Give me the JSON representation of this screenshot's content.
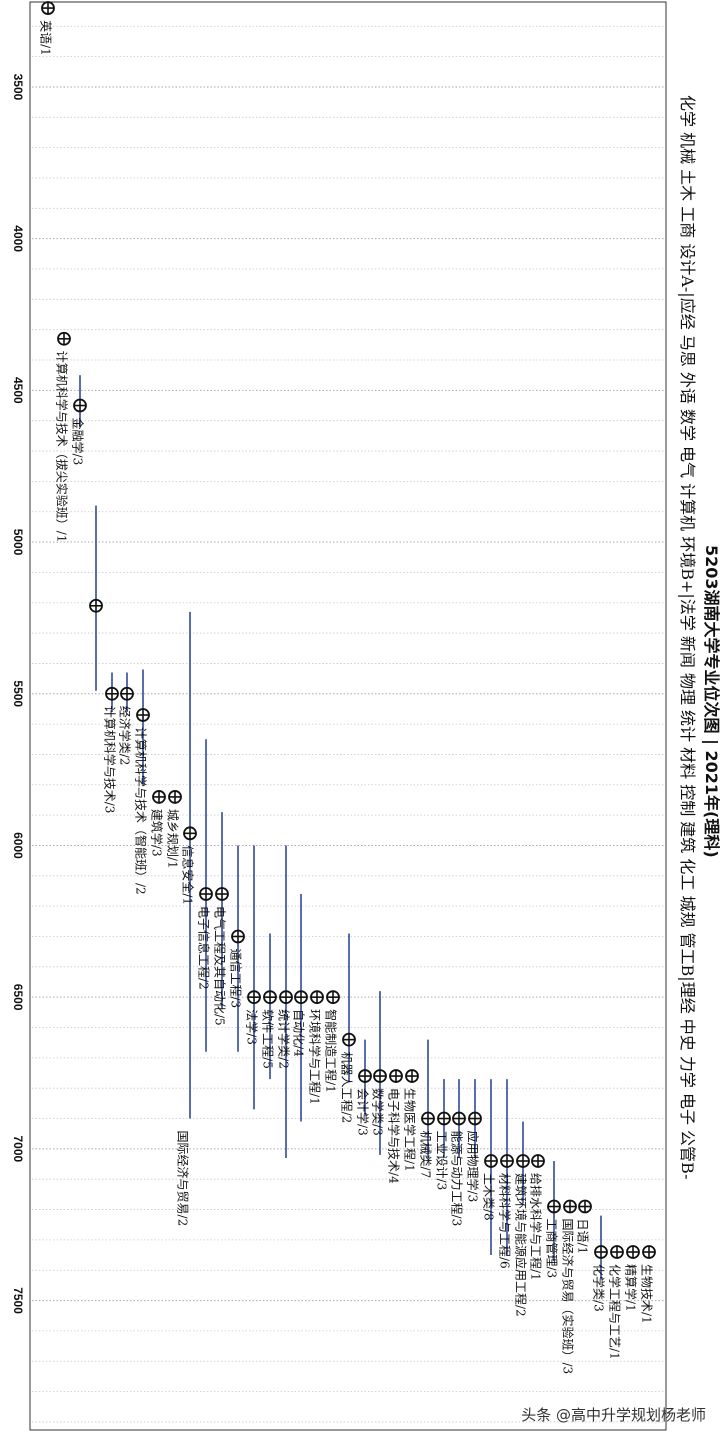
{
  "chart_data": {
    "type": "scatter",
    "orientation": "rotated-90",
    "title": "5203湖南大学专业位次图 | 2021年(理科)",
    "subtitle": "化学 机械 土木 工商 设计A-|应经 马思 外语 数学 电气 计算机 环境B+|法学 新闻 物理 统计 材料 控制 建筑 化工 城规 管工B|理经 中史 力学 电子 公管B-",
    "axis": {
      "label": "",
      "range": [
        3220,
        7920
      ],
      "ticks": [
        3500,
        4000,
        4500,
        5000,
        5500,
        6000,
        6500,
        7000,
        7500
      ]
    },
    "grid": true,
    "points": [
      {
        "label": "英语/1",
        "rank": 3240,
        "lo": null,
        "hi": null
      },
      {
        "label": "计算机科学与技术（拔尖实验班）/1",
        "rank": 4330,
        "lo": null,
        "hi": null
      },
      {
        "label": "金融学/3",
        "rank": 4550,
        "lo": 4450,
        "hi": 4620
      },
      {
        "label": "",
        "rank": 5210,
        "lo": 4880,
        "hi": 5490
      },
      {
        "label": "计算机科学与技术/3",
        "rank": 5500,
        "lo": 5430,
        "hi": 5560
      },
      {
        "label": "经济学类/2",
        "rank": 5500,
        "lo": 5430,
        "hi": 5560
      },
      {
        "label": "计算机科学与技术（智能班）/2",
        "rank": 5570,
        "lo": 5420,
        "hi": 5800
      },
      {
        "label": "建筑学/3",
        "rank": 5840,
        "lo": null,
        "hi": null
      },
      {
        "label": "城乡规划/1",
        "rank": 5840,
        "lo": null,
        "hi": null
      },
      {
        "label": "信息安全/1",
        "rank": 5960,
        "lo": 5230,
        "hi": 6900
      },
      {
        "label": "电子信息工程/2",
        "rank": 6160,
        "lo": 5650,
        "hi": 6680
      },
      {
        "label": "电气工程及其自动化/5",
        "rank": 6160,
        "lo": 5890,
        "hi": 6540
      },
      {
        "label": "通信工程/3",
        "rank": 6300,
        "lo": 6000,
        "hi": 6680
      },
      {
        "label": "法学/3",
        "rank": 6500,
        "lo": 6000,
        "hi": 6870
      },
      {
        "label": "软件工程/5",
        "rank": 6500,
        "lo": 6290,
        "hi": 6770
      },
      {
        "label": "统计学类/2",
        "rank": 6500,
        "lo": 6000,
        "hi": 7030
      },
      {
        "label": "自动化/4",
        "rank": 6500,
        "lo": 6160,
        "hi": 6910
      },
      {
        "label": "环境科学与工程/1",
        "rank": 6500,
        "lo": null,
        "hi": null
      },
      {
        "label": "智能制造工程/1",
        "rank": 6500,
        "lo": null,
        "hi": null
      },
      {
        "label": "机器人工程/2",
        "rank": 6640,
        "lo": 6290,
        "hi": 6780
      },
      {
        "label": "会计学/3",
        "rank": 6760,
        "lo": 6640,
        "hi": 6890
      },
      {
        "label": "数学类/3",
        "rank": 6760,
        "lo": 6480,
        "hi": 7020
      },
      {
        "label": "电子科学与技术/4",
        "rank": 6760,
        "lo": null,
        "hi": null
      },
      {
        "label": "生物医学工程/1",
        "rank": 6760,
        "lo": null,
        "hi": null
      },
      {
        "label": "机械类/7",
        "rank": 6900,
        "lo": 6640,
        "hi": 7030
      },
      {
        "label": "工业设计/3",
        "rank": 6900,
        "lo": 6770,
        "hi": 7030
      },
      {
        "label": "能源与动力工程/3",
        "rank": 6900,
        "lo": 6770,
        "hi": 7030
      },
      {
        "label": "应用物理学/3",
        "rank": 6900,
        "lo": 6770,
        "hi": 7030
      },
      {
        "label": "土木类/8",
        "rank": 7040,
        "lo": 6770,
        "hi": 7350
      },
      {
        "label": "材料科学与工程/6",
        "rank": 7040,
        "lo": 6770,
        "hi": 7350
      },
      {
        "label": "建筑环境与能源应用工程/2",
        "rank": 7040,
        "lo": 6910,
        "hi": 7180
      },
      {
        "label": "给排水科学与工程/1",
        "rank": 7040,
        "lo": null,
        "hi": null
      },
      {
        "label": "工商管理/3",
        "rank": 7190,
        "lo": 7040,
        "hi": 7370
      },
      {
        "label": "国际经济与贸易（实验班）/3",
        "rank": 7190,
        "lo": null,
        "hi": null
      },
      {
        "label": "日语/1",
        "rank": 7190,
        "lo": null,
        "hi": null
      },
      {
        "label": "化学类/3",
        "rank": 7340,
        "lo": 7220,
        "hi": 7430
      },
      {
        "label": "化学工程与工艺/1",
        "rank": 7340,
        "lo": null,
        "hi": null
      },
      {
        "label": "精算学/1",
        "rank": 7340,
        "lo": null,
        "hi": null
      },
      {
        "label": "生物技术/1",
        "rank": 7340,
        "lo": null,
        "hi": null
      }
    ],
    "extra_labels": [
      {
        "label": "国际经济与贸易/2",
        "anchor": 9
      }
    ],
    "colors": {
      "line": "#2e4a9b",
      "marker": "#111111",
      "grid": "#c9c9c9",
      "text": "#111111"
    }
  },
  "watermark": "头条 @高中升学规划杨老师"
}
